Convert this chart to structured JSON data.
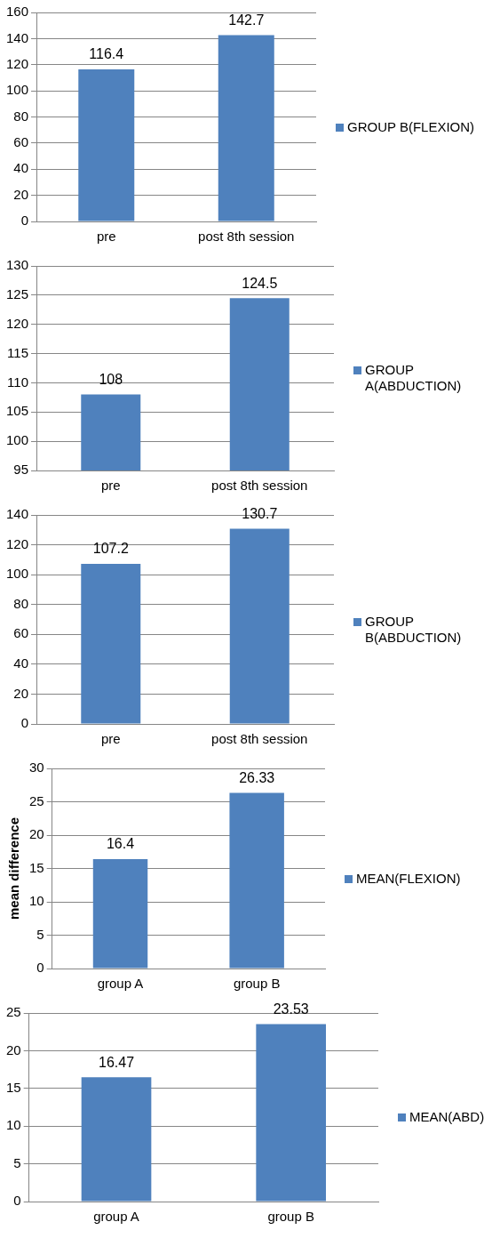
{
  "chart_data": [
    {
      "type": "bar",
      "categories": [
        "pre",
        "post 8th session"
      ],
      "series": [
        {
          "name": "GROUP B(FLEXION)",
          "color": "#4f81bd",
          "values": [
            116.4,
            142.7
          ]
        }
      ],
      "ylim": [
        0,
        160
      ],
      "yticks": [
        0,
        20,
        40,
        60,
        80,
        100,
        120,
        140,
        160
      ],
      "grid": "y",
      "legend": "right",
      "data_labels": true
    },
    {
      "type": "bar",
      "categories": [
        "pre",
        "post 8th session"
      ],
      "series": [
        {
          "name": "GROUP A(ABDUCTION)",
          "color": "#4f81bd",
          "values": [
            108,
            124.5
          ]
        }
      ],
      "ylim": [
        95,
        130
      ],
      "yticks": [
        95,
        100,
        105,
        110,
        115,
        120,
        125,
        130
      ],
      "grid": "y",
      "legend": "right",
      "data_labels": true
    },
    {
      "type": "bar",
      "categories": [
        "pre",
        "post 8th session"
      ],
      "series": [
        {
          "name": "GROUP B(ABDUCTION)",
          "color": "#4f81bd",
          "values": [
            107.2,
            130.7
          ]
        }
      ],
      "ylim": [
        0,
        140
      ],
      "yticks": [
        0,
        20,
        40,
        60,
        80,
        100,
        120,
        140
      ],
      "grid": "y",
      "legend": "right",
      "data_labels": true
    },
    {
      "type": "bar",
      "categories": [
        "group A",
        "group B"
      ],
      "series": [
        {
          "name": "MEAN(FLEXION)",
          "color": "#4f81bd",
          "values": [
            16.4,
            26.33
          ]
        }
      ],
      "ylabel": "mean difference",
      "ylim": [
        0,
        30
      ],
      "yticks": [
        0,
        5,
        10,
        15,
        20,
        25,
        30
      ],
      "grid": "y",
      "legend": "right",
      "data_labels": true
    },
    {
      "type": "bar",
      "categories": [
        "group A",
        "group B"
      ],
      "series": [
        {
          "name": "MEAN(ABD)",
          "color": "#4f81bd",
          "values": [
            16.47,
            23.53
          ]
        }
      ],
      "ylim": [
        0,
        25
      ],
      "yticks": [
        0,
        5,
        10,
        15,
        20,
        25
      ],
      "grid": "y",
      "legend": "right",
      "data_labels": true
    }
  ]
}
